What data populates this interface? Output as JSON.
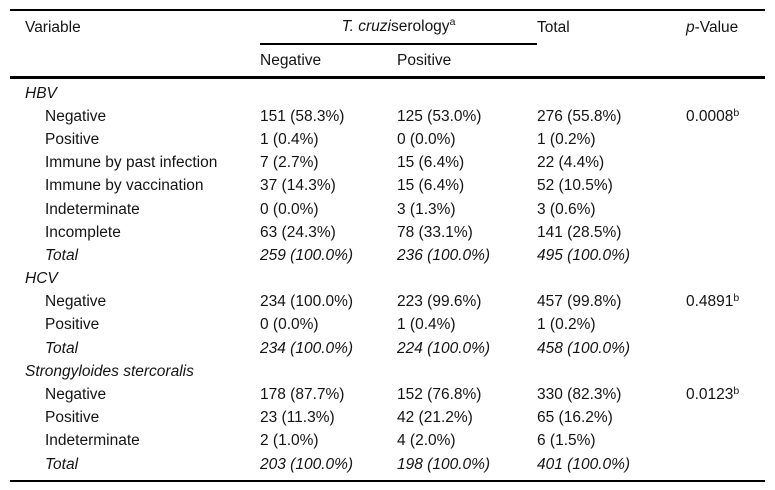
{
  "table": {
    "header": {
      "variable": "Variable",
      "serology_italic": "T. cruzi",
      "serology_rest": " serology",
      "serology_sup": "a",
      "col_negative": "Negative",
      "col_positive": "Positive",
      "total": "Total",
      "pvalue_italic": "p",
      "pvalue_rest": "-Value"
    },
    "sections": [
      {
        "name": "HBV",
        "rows": [
          {
            "label": "Negative",
            "neg": "151 (58.3%)",
            "pos": "125 (53.0%)",
            "total": "276 (55.8%)",
            "p": "0.0008",
            "p_sup": "b"
          },
          {
            "label": "Positive",
            "neg": "1 (0.4%)",
            "pos": "0 (0.0%)",
            "total": "1 (0.2%)"
          },
          {
            "label": "Immune by past infection",
            "neg": "7 (2.7%)",
            "pos": "15 (6.4%)",
            "total": "22 (4.4%)"
          },
          {
            "label": "Immune by vaccination",
            "neg": "37 (14.3%)",
            "pos": "15 (6.4%)",
            "total": "52 (10.5%)"
          },
          {
            "label": "Indeterminate",
            "neg": "0 (0.0%)",
            "pos": "3 (1.3%)",
            "total": "3 (0.6%)"
          },
          {
            "label": "Incomplete",
            "neg": "63 (24.3%)",
            "pos": "78 (33.1%)",
            "total": "141 (28.5%)"
          },
          {
            "label": "Total",
            "neg": "259 (100.0%)",
            "pos": "236 (100.0%)",
            "total": "495 (100.0%)"
          }
        ]
      },
      {
        "name": "HCV",
        "rows": [
          {
            "label": "Negative",
            "neg": "234 (100.0%)",
            "pos": "223 (99.6%)",
            "total": "457 (99.8%)",
            "p": "0.4891",
            "p_sup": "b"
          },
          {
            "label": "Positive",
            "neg": "0 (0.0%)",
            "pos": "1 (0.4%)",
            "total": "1 (0.2%)"
          },
          {
            "label": "Total",
            "neg": "234 (100.0%)",
            "pos": "224 (100.0%)",
            "total": "458 (100.0%)"
          }
        ]
      },
      {
        "name": "Strongyloides stercoralis",
        "rows": [
          {
            "label": "Negative",
            "neg": "178 (87.7%)",
            "pos": "152 (76.8%)",
            "total": "330 (82.3%)",
            "p": "0.0123",
            "p_sup": "b"
          },
          {
            "label": "Positive",
            "neg": "23 (11.3%)",
            "pos": "42 (21.2%)",
            "total": "65 (16.2%)"
          },
          {
            "label": "Indeterminate",
            "neg": "2 (1.0%)",
            "pos": "4 (2.0%)",
            "total": "6 (1.5%)"
          },
          {
            "label": "Total",
            "neg": "203 (100.0%)",
            "pos": "198 (100.0%)",
            "total": "401 (100.0%)"
          }
        ]
      }
    ]
  }
}
